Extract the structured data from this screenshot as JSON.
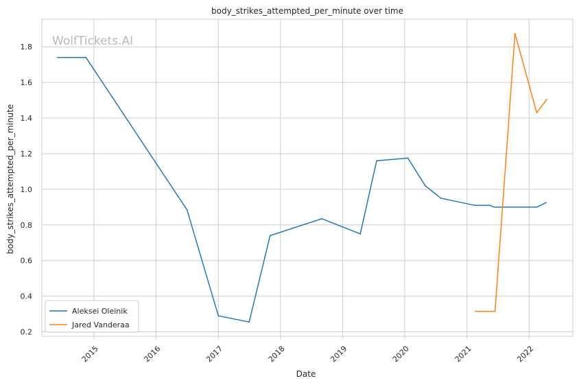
{
  "watermark": "WolfTickets.AI",
  "chart_data": {
    "type": "line",
    "title": "body_strikes_attempted_per_minute over time",
    "xlabel": "Date",
    "ylabel": "body_strikes_attempted_per_minute",
    "x_ticks": [
      "2015",
      "2016",
      "2017",
      "2018",
      "2019",
      "2020",
      "2021",
      "2022"
    ],
    "y_ticks": [
      "0.2",
      "0.4",
      "0.6",
      "0.8",
      "1.0",
      "1.2",
      "1.4",
      "1.6",
      "1.8"
    ],
    "xlim": [
      "2014-03-01",
      "2022-09-15"
    ],
    "ylim": [
      0.175,
      1.955
    ],
    "grid": true,
    "legend_position": "lower-left",
    "colors": [
      "#1f77b4",
      "#ff7f0e"
    ],
    "series": [
      {
        "name": "Aleksei Oleinik",
        "color": "#1f77b4",
        "points": [
          [
            "2014-06-01",
            1.74
          ],
          [
            "2014-11-15",
            1.74
          ],
          [
            "2016-07-01",
            0.885
          ],
          [
            "2017-01-01",
            0.29
          ],
          [
            "2017-07-01",
            0.255
          ],
          [
            "2017-11-01",
            0.74
          ],
          [
            "2018-09-01",
            0.835
          ],
          [
            "2019-04-15",
            0.75
          ],
          [
            "2019-07-20",
            1.16
          ],
          [
            "2020-01-20",
            1.175
          ],
          [
            "2020-05-01",
            1.02
          ],
          [
            "2020-08-01",
            0.95
          ],
          [
            "2021-02-15",
            0.91
          ],
          [
            "2021-05-15",
            0.91
          ],
          [
            "2021-06-10",
            0.9
          ],
          [
            "2021-09-15",
            0.9
          ],
          [
            "2022-02-15",
            0.9
          ],
          [
            "2022-04-10",
            0.925
          ]
        ]
      },
      {
        "name": "Jared Vanderaa",
        "color": "#ff7f0e",
        "points": [
          [
            "2021-02-20",
            0.315
          ],
          [
            "2021-06-15",
            0.315
          ],
          [
            "2021-10-10",
            1.875
          ],
          [
            "2022-02-15",
            1.43
          ],
          [
            "2022-04-15",
            1.505
          ]
        ]
      }
    ]
  }
}
